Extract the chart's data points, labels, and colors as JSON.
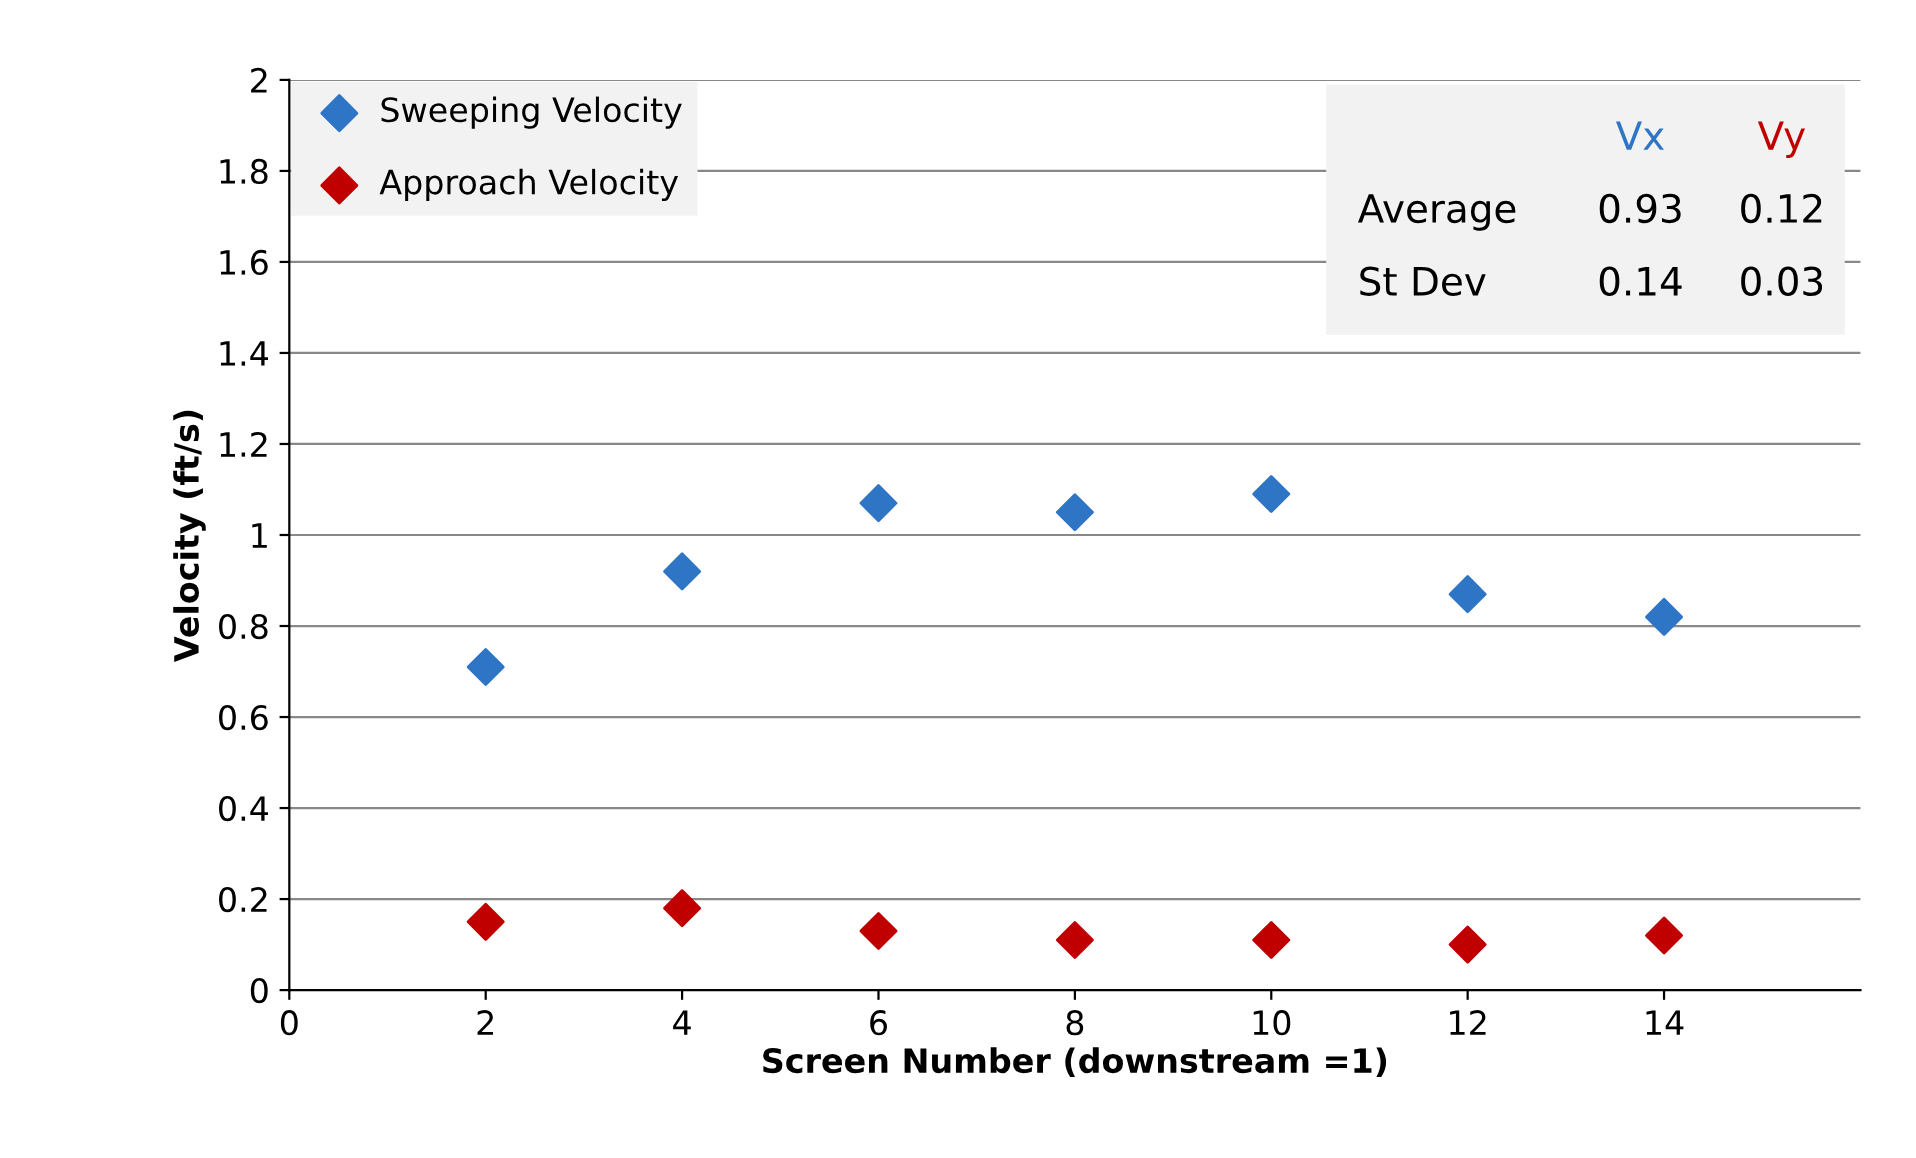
{
  "chart_data": {
    "type": "scatter",
    "xlabel": "Screen Number (downstream =1)",
    "ylabel": "Velocity (ft/s)",
    "x": [
      2,
      4,
      6,
      8,
      10,
      12,
      14
    ],
    "series": [
      {
        "name": "Sweeping Velocity",
        "color": "#2e75c6",
        "values": [
          0.71,
          0.92,
          1.07,
          1.05,
          1.09,
          0.87,
          0.82
        ]
      },
      {
        "name": "Approach Velocity",
        "color": "#c00000",
        "values": [
          0.15,
          0.18,
          0.13,
          0.11,
          0.11,
          0.1,
          0.12
        ]
      }
    ],
    "xlim": [
      0,
      16
    ],
    "xticks": [
      0,
      2,
      4,
      6,
      8,
      10,
      12,
      14
    ],
    "ylim": [
      0,
      2
    ],
    "yticks": [
      0,
      0.2,
      0.4,
      0.6,
      0.8,
      1,
      1.2,
      1.4,
      1.6,
      1.8,
      2
    ],
    "annotations": [
      "Vx",
      "Vy",
      "Average",
      "0.93",
      "0.12",
      "St Dev",
      "0.14",
      "0.03"
    ],
    "grid": "y",
    "legend": "top left",
    "marker": "diamond"
  }
}
